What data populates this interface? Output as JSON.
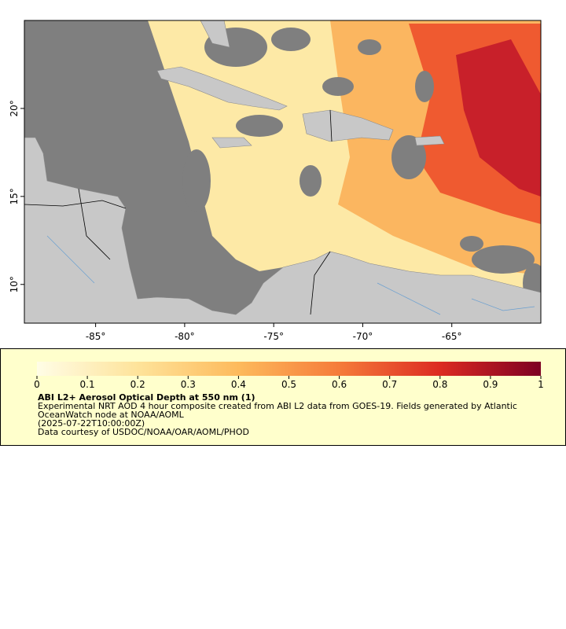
{
  "map": {
    "lon_range": [
      -89,
      -60
    ],
    "lat_range": [
      7.8,
      25
    ],
    "lon_ticks": [
      {
        "value": -85,
        "label": "-85°"
      },
      {
        "value": -80,
        "label": "-80°"
      },
      {
        "value": -75,
        "label": "-75°"
      },
      {
        "value": -70,
        "label": "-70°"
      },
      {
        "value": -65,
        "label": "-65°"
      }
    ],
    "lat_ticks": [
      {
        "value": 10,
        "label": "10°"
      },
      {
        "value": 15,
        "label": "15°"
      },
      {
        "value": 20,
        "label": "20°"
      }
    ]
  },
  "colorbar": {
    "range": [
      0,
      1
    ],
    "ticks": [
      0,
      0.1,
      0.2,
      0.3,
      0.4,
      0.5,
      0.6,
      0.7,
      0.8,
      0.9,
      1
    ]
  },
  "legend": {
    "title": "ABI L2+ Aerosol Optical Depth at 550 nm (1)",
    "description": "Experimental NRT AOD 4 hour composite created from ABI L2 data from GOES-19. Fields generated by Atlantic OceanWatch node at NOAA/AOML",
    "time": "(2025-07-22T10:00:00Z)",
    "credit": "Data courtesy of USDOC/NOAA/OAR/AOML/PHOD"
  }
}
